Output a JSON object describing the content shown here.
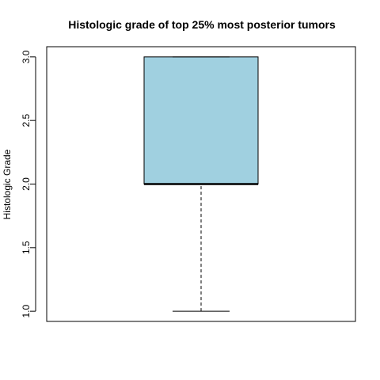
{
  "chart_data": {
    "type": "boxplot",
    "title": "Histologic grade of top 25% most posterior tumors",
    "xlabel": "",
    "ylabel": "Histologic Grade",
    "ylim": [
      0.92,
      3.08
    ],
    "yticks": [
      1.0,
      1.5,
      2.0,
      2.5,
      3.0
    ],
    "ytick_labels": [
      "1.0",
      "1.5",
      "2.0",
      "2.5",
      "3.0"
    ],
    "grid": false,
    "box": {
      "min": 1.0,
      "q1": 2.0,
      "median": 2.0,
      "q3": 3.0,
      "max": 3.0,
      "fill": "#a0d0e0"
    }
  }
}
